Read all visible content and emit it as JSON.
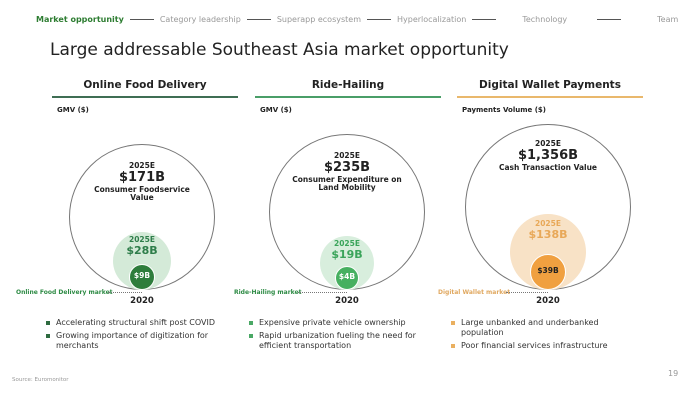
{
  "nav": {
    "items": [
      "Market opportunity",
      "Category leadership",
      "Superapp ecosystem",
      "Hyperlocalization",
      "Technology",
      "Team"
    ],
    "active": 0
  },
  "title": "Large addressable Southeast Asia market opportunity",
  "columns": [
    {
      "header": "Online Food Delivery",
      "color": "#3f6e54",
      "metric": "GMV ($)",
      "outer": {
        "year": "2025E",
        "value": "$171B",
        "desc": "Consumer Foodservice Value"
      },
      "mid": {
        "year": "2025E",
        "value": "$28B",
        "color": "#d4ead8",
        "textColor": "#2e7d4a"
      },
      "inner": {
        "value": "$9B",
        "color": "#2e7d3c"
      },
      "market_label": "Online Food Delivery market",
      "base_year": "2020",
      "bullets": [
        "Accelerating structural shift post COVID",
        "Growing importance of digitization for merchants"
      ],
      "bullet_color": "#2e6b40"
    },
    {
      "header": "Ride-Hailing",
      "color": "#4a9e68",
      "metric": "GMV ($)",
      "outer": {
        "year": "2025E",
        "value": "$235B",
        "desc": "Consumer Expenditure on Land Mobility"
      },
      "mid": {
        "year": "2025E",
        "value": "$19B",
        "color": "#d8eedd",
        "textColor": "#3aa45a"
      },
      "inner": {
        "value": "$4B",
        "color": "#46b060"
      },
      "market_label": "Ride-Hailing market",
      "base_year": "2020",
      "bullets": [
        "Expensive private vehicle ownership",
        "Rapid urbanization fueling the need for efficient transportation"
      ],
      "bullet_color": "#4aa865"
    },
    {
      "header": "Digital Wallet Payments",
      "color": "#e9b86c",
      "metric": "Payments Volume ($)",
      "outer": {
        "year": "2025E",
        "value": "$1,356B",
        "desc": "Cash Transaction Value"
      },
      "mid": {
        "year": "2025E",
        "value": "$138B",
        "color": "#f8e2c6",
        "textColor": "#e8a858"
      },
      "inner": {
        "value": "$39B",
        "color": "#f0a040"
      },
      "market_label": "Digital Wallet market",
      "base_year": "2020",
      "bullets": [
        "Large unbanked and underbanked population",
        "Poor financial services infrastructure"
      ],
      "bullet_color": "#eab060"
    }
  ],
  "source": "Source: Euromonitor",
  "page_number": "19"
}
